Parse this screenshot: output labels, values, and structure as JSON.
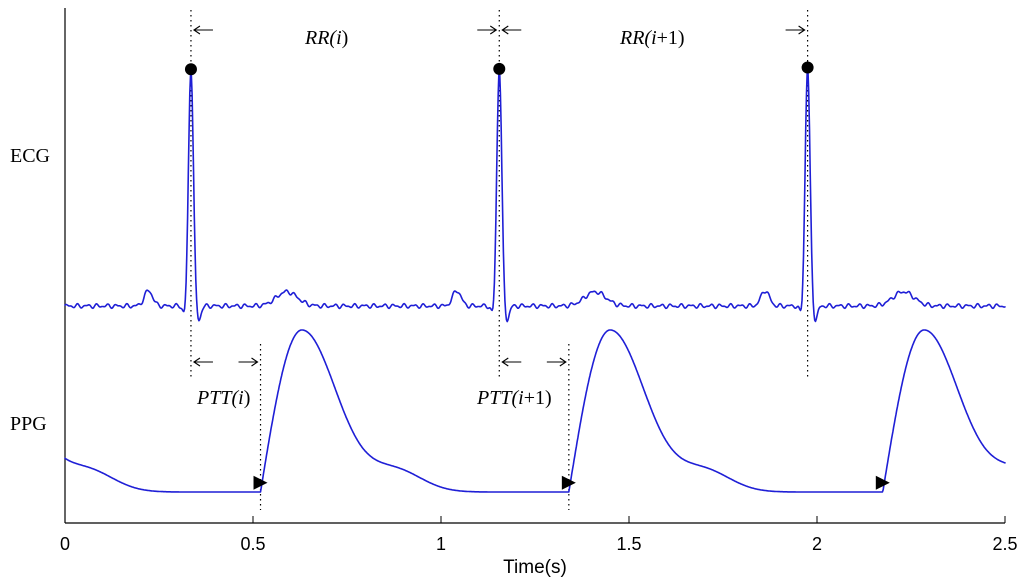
{
  "chart_data": {
    "type": "line",
    "title": "",
    "xlabel": "Time(s)",
    "ylabel": "",
    "xlim": [
      0,
      2.5
    ],
    "x_ticks": [
      "0",
      "0.5",
      "1",
      "1.5",
      "2",
      "2.5"
    ],
    "grid": false,
    "series": [
      {
        "name": "ECG",
        "color": "#1f1fd6"
      },
      {
        "name": "PPG",
        "color": "#1f1fd6"
      }
    ],
    "r_peaks_s": [
      0.335,
      1.155,
      1.975
    ],
    "ppg_feet_s": [
      0.52,
      1.34,
      2.175
    ],
    "annotations": {
      "rr": [
        {
          "pre": "RR(",
          "italic": "i",
          "post": ")"
        },
        {
          "pre": "RR(",
          "italic": "i",
          "post": "+1)"
        }
      ],
      "ptt": [
        {
          "pre": "PTT(",
          "italic": "i",
          "post": ")"
        },
        {
          "pre": "PTT(",
          "italic": "i",
          "post": "+1)"
        }
      ]
    }
  }
}
